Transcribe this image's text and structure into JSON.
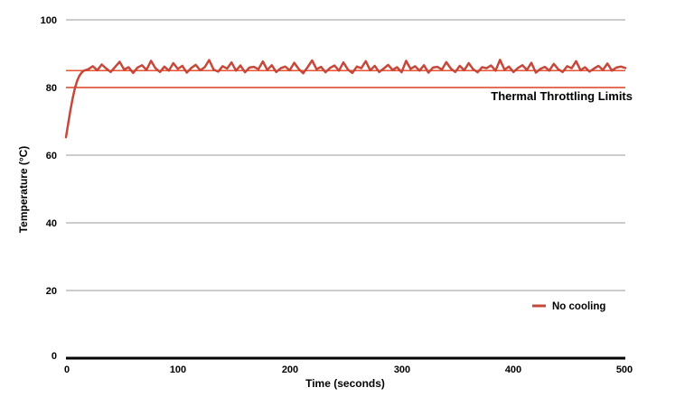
{
  "chart_data": {
    "type": "line",
    "title": "",
    "xlabel": "Time (seconds)",
    "ylabel": "Temperature (°C)",
    "xlim": [
      0,
      500
    ],
    "ylim": [
      0,
      100
    ],
    "xticks": [
      0,
      100,
      200,
      300,
      400,
      500
    ],
    "yticks": [
      0,
      20,
      40,
      60,
      80,
      100
    ],
    "grid": "horizontal",
    "colors": {
      "grid": "#cccccc",
      "axis": "#000000",
      "background": "#ffffff"
    },
    "limit_lines": {
      "label": "Thermal Throttling Limits",
      "color": "#ec5130",
      "values": [
        80,
        85
      ]
    },
    "legend": {
      "position": "inside-right",
      "entries": [
        "No cooling"
      ]
    },
    "series": [
      {
        "name": "No cooling",
        "color": "#c5483a",
        "points": [
          [
            0,
            65.3
          ],
          [
            2,
            69.4
          ],
          [
            4,
            73.4
          ],
          [
            6,
            76.8
          ],
          [
            8,
            79.8
          ],
          [
            10,
            82.0
          ],
          [
            12,
            83.5
          ],
          [
            14,
            84.4
          ],
          [
            16,
            85.0
          ],
          [
            20,
            85.4
          ],
          [
            24,
            86.3
          ],
          [
            28,
            85.1
          ],
          [
            32,
            86.8
          ],
          [
            36,
            85.6
          ],
          [
            40,
            84.6
          ],
          [
            44,
            86.1
          ],
          [
            48,
            87.6
          ],
          [
            52,
            85.3
          ],
          [
            56,
            86.0
          ],
          [
            60,
            84.3
          ],
          [
            64,
            85.9
          ],
          [
            68,
            86.6
          ],
          [
            72,
            85.2
          ],
          [
            76,
            87.9
          ],
          [
            80,
            85.7
          ],
          [
            84,
            84.6
          ],
          [
            88,
            86.2
          ],
          [
            92,
            85.0
          ],
          [
            96,
            87.2
          ],
          [
            100,
            85.5
          ],
          [
            104,
            86.4
          ],
          [
            108,
            84.4
          ],
          [
            112,
            85.8
          ],
          [
            116,
            86.7
          ],
          [
            120,
            85.1
          ],
          [
            124,
            86.0
          ],
          [
            128,
            88.1
          ],
          [
            132,
            85.3
          ],
          [
            136,
            84.7
          ],
          [
            140,
            86.3
          ],
          [
            144,
            85.6
          ],
          [
            148,
            87.4
          ],
          [
            152,
            85.0
          ],
          [
            156,
            86.5
          ],
          [
            160,
            84.5
          ],
          [
            164,
            85.9
          ],
          [
            168,
            86.1
          ],
          [
            172,
            85.4
          ],
          [
            176,
            87.7
          ],
          [
            180,
            85.2
          ],
          [
            184,
            86.6
          ],
          [
            188,
            84.6
          ],
          [
            192,
            85.7
          ],
          [
            196,
            86.2
          ],
          [
            200,
            85.1
          ],
          [
            204,
            87.3
          ],
          [
            208,
            85.5
          ],
          [
            212,
            84.2
          ],
          [
            216,
            86.0
          ],
          [
            220,
            88.0
          ],
          [
            224,
            85.4
          ],
          [
            228,
            86.1
          ],
          [
            232,
            84.5
          ],
          [
            236,
            85.8
          ],
          [
            240,
            86.5
          ],
          [
            244,
            85.0
          ],
          [
            248,
            87.4
          ],
          [
            252,
            85.3
          ],
          [
            256,
            84.3
          ],
          [
            260,
            86.2
          ],
          [
            264,
            85.7
          ],
          [
            268,
            87.8
          ],
          [
            272,
            85.1
          ],
          [
            276,
            86.4
          ],
          [
            280,
            84.6
          ],
          [
            284,
            85.6
          ],
          [
            288,
            86.7
          ],
          [
            292,
            85.2
          ],
          [
            296,
            86.0
          ],
          [
            300,
            84.5
          ],
          [
            304,
            87.9
          ],
          [
            308,
            85.5
          ],
          [
            312,
            86.3
          ],
          [
            316,
            85.0
          ],
          [
            320,
            86.6
          ],
          [
            324,
            84.4
          ],
          [
            328,
            85.9
          ],
          [
            332,
            86.1
          ],
          [
            336,
            85.3
          ],
          [
            340,
            87.5
          ],
          [
            344,
            85.6
          ],
          [
            348,
            84.6
          ],
          [
            352,
            86.4
          ],
          [
            356,
            85.1
          ],
          [
            360,
            87.2
          ],
          [
            364,
            85.4
          ],
          [
            368,
            84.5
          ],
          [
            372,
            86.0
          ],
          [
            376,
            85.7
          ],
          [
            380,
            86.5
          ],
          [
            384,
            85.0
          ],
          [
            388,
            88.2
          ],
          [
            392,
            85.3
          ],
          [
            396,
            86.2
          ],
          [
            400,
            84.6
          ],
          [
            404,
            85.8
          ],
          [
            408,
            86.6
          ],
          [
            412,
            85.2
          ],
          [
            416,
            87.3
          ],
          [
            420,
            84.4
          ],
          [
            424,
            85.5
          ],
          [
            428,
            86.1
          ],
          [
            432,
            85.0
          ],
          [
            436,
            87.0
          ],
          [
            440,
            85.4
          ],
          [
            444,
            84.6
          ],
          [
            448,
            86.3
          ],
          [
            452,
            85.7
          ],
          [
            456,
            87.8
          ],
          [
            460,
            85.1
          ],
          [
            464,
            86.0
          ],
          [
            468,
            84.7
          ],
          [
            472,
            85.6
          ],
          [
            476,
            86.4
          ],
          [
            480,
            85.2
          ],
          [
            484,
            87.1
          ],
          [
            488,
            85.0
          ],
          [
            492,
            85.9
          ],
          [
            496,
            86.2
          ],
          [
            500,
            85.8
          ]
        ]
      }
    ]
  }
}
